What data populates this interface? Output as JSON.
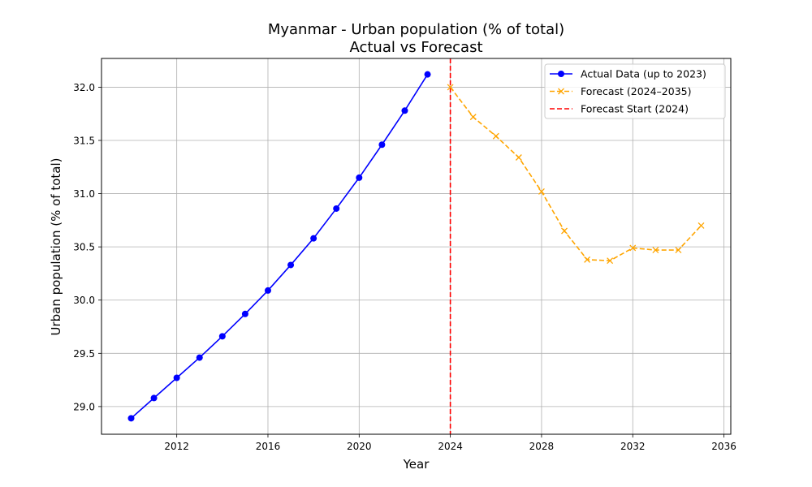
{
  "chart_data": {
    "type": "line",
    "title": "Myanmar - Urban population (% of total)",
    "subtitle": "Actual vs Forecast",
    "xlabel": "Year",
    "ylabel": "Urban population (% of total)",
    "xlim": [
      2008.7,
      2036.3
    ],
    "ylim": [
      28.74,
      32.27
    ],
    "x_ticks": [
      2012,
      2016,
      2020,
      2024,
      2028,
      2032,
      2036
    ],
    "y_ticks": [
      29.0,
      29.5,
      30.0,
      30.5,
      31.0,
      31.5,
      32.0
    ],
    "y_tick_labels": [
      "29.0",
      "29.5",
      "30.0",
      "30.5",
      "31.0",
      "31.5",
      "32.0"
    ],
    "grid": true,
    "legend_position": "top-right",
    "series": [
      {
        "name": "Actual Data (up to 2023)",
        "style": "solid",
        "marker": "circle",
        "color": "#0000ff",
        "x": [
          2010,
          2011,
          2012,
          2013,
          2014,
          2015,
          2016,
          2017,
          2018,
          2019,
          2020,
          2021,
          2022,
          2023
        ],
        "y": [
          28.89,
          29.08,
          29.27,
          29.46,
          29.66,
          29.87,
          30.09,
          30.33,
          30.58,
          30.86,
          31.15,
          31.46,
          31.78,
          32.12
        ]
      },
      {
        "name": "Forecast (2024–2035)",
        "style": "dashed",
        "marker": "x",
        "color": "#ffa500",
        "x": [
          2024,
          2025,
          2026,
          2027,
          2028,
          2029,
          2030,
          2031,
          2032,
          2033,
          2034,
          2035
        ],
        "y": [
          32.0,
          31.72,
          31.54,
          31.34,
          31.02,
          30.65,
          30.38,
          30.37,
          30.49,
          30.47,
          30.47,
          30.7
        ]
      }
    ],
    "reference_lines": [
      {
        "name": "Forecast Start (2024)",
        "orientation": "vertical",
        "x": 2024,
        "style": "dashed",
        "color": "#ff0000"
      }
    ]
  }
}
